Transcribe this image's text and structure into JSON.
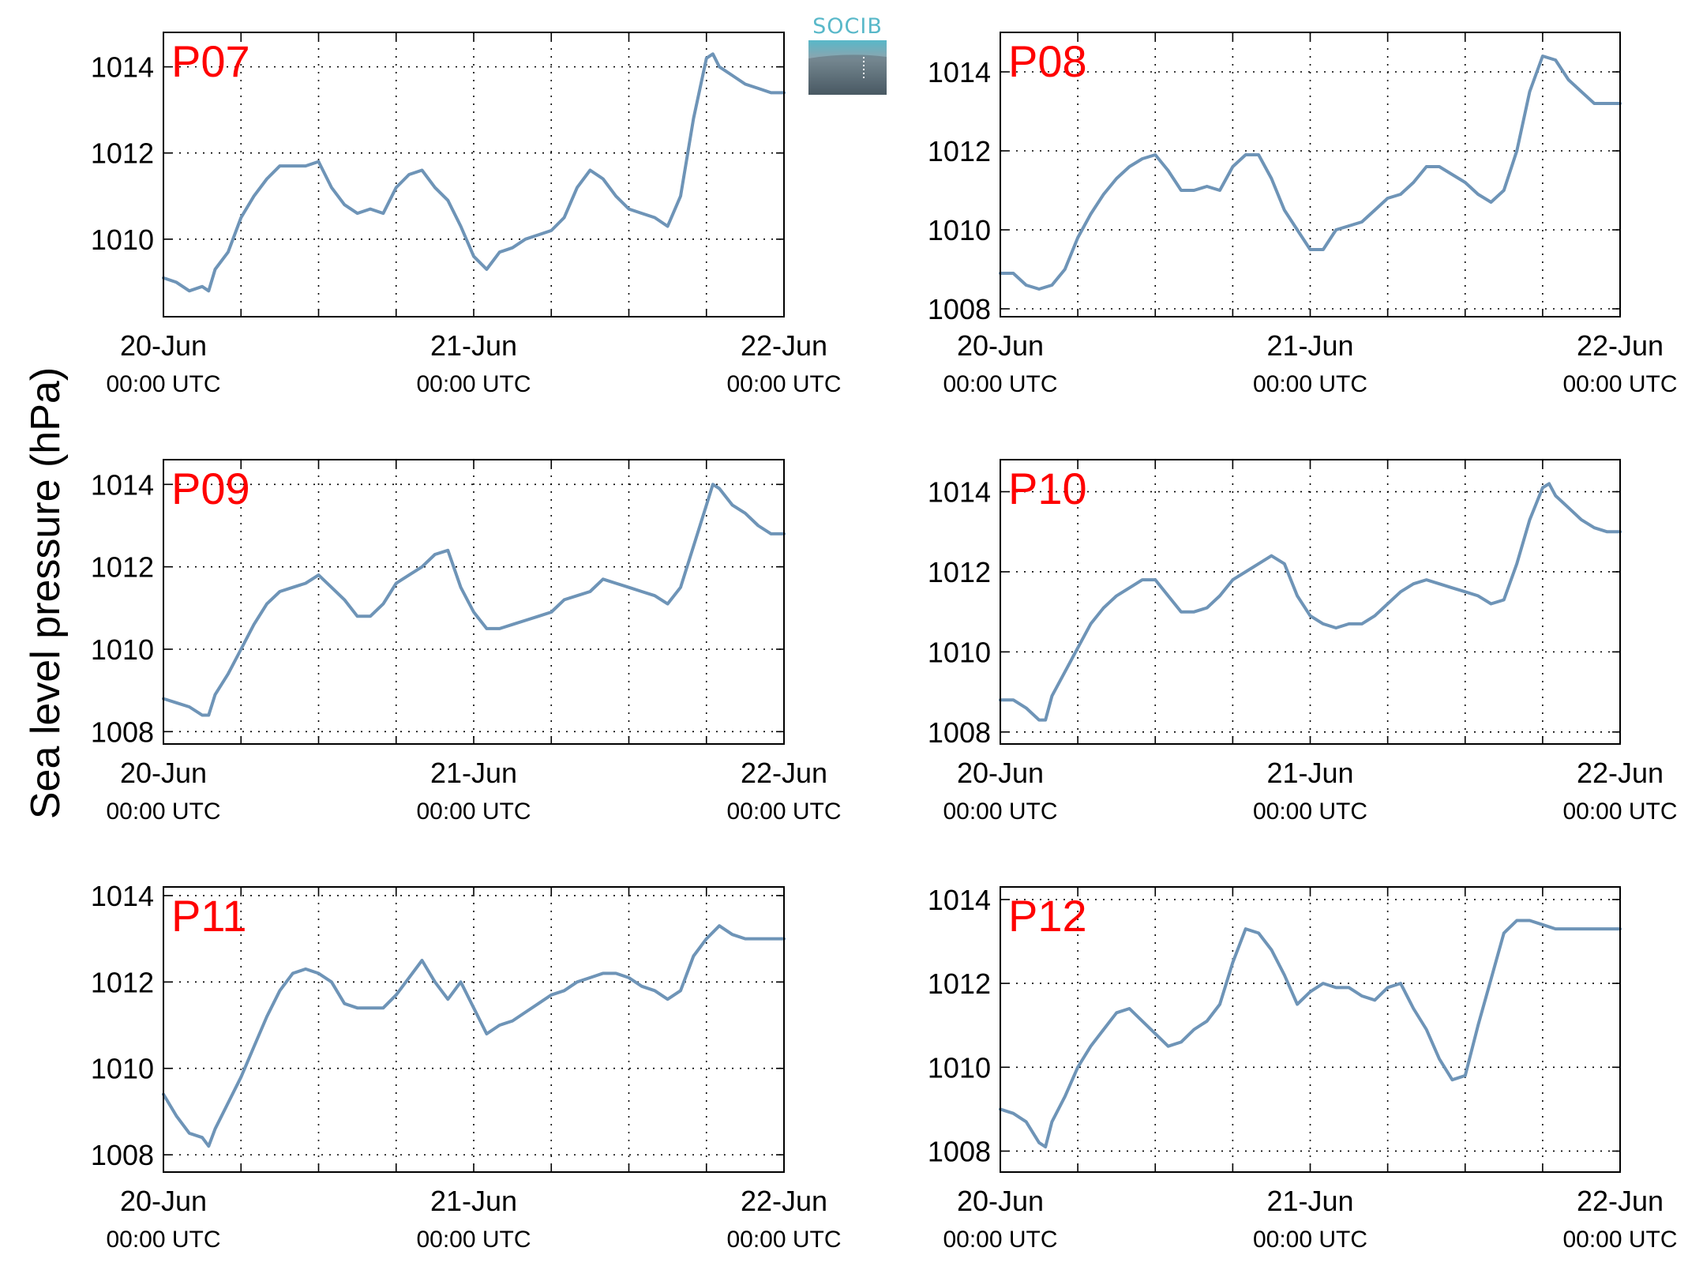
{
  "figure": {
    "ylabel": "Sea level pressure (hPa)",
    "logo_text": "SOCIB"
  },
  "colors": {
    "line": "#6e94b7",
    "panel_label": "#ff0000",
    "axes": "#000000",
    "grid": "#000000",
    "logo_accent": "#58b8c9",
    "logo_dark": "#2e3e48"
  },
  "chart_data": [
    {
      "type": "line",
      "title": "P07",
      "ylim": [
        1008.2,
        1014.8
      ],
      "yticks": [
        1010,
        1012,
        1014
      ],
      "ytick_labels": [
        "1010",
        "1012",
        "1014"
      ],
      "x_tick_labels": [
        [
          "20-Jun",
          "00:00 UTC"
        ],
        [
          "21-Jun",
          "00:00 UTC"
        ],
        [
          "22-Jun",
          "00:00 UTC"
        ]
      ],
      "grid": true,
      "xlabel": "",
      "xlim_hours": [
        0,
        48
      ],
      "series": [
        {
          "x": [
            0,
            1,
            2,
            3,
            3.5,
            4,
            5,
            6,
            7,
            8,
            9,
            10,
            11,
            12,
            13,
            14,
            15,
            16,
            17,
            18,
            19,
            20,
            21,
            22,
            23,
            24,
            25,
            26,
            27,
            28,
            29,
            30,
            31,
            32,
            33,
            34,
            35,
            36,
            37,
            38,
            39,
            40,
            41,
            42,
            42.5,
            43,
            44,
            45,
            46,
            47,
            48
          ],
          "values": [
            1009.1,
            1009.0,
            1008.8,
            1008.9,
            1008.8,
            1009.3,
            1009.7,
            1010.5,
            1011.0,
            1011.4,
            1011.7,
            1011.7,
            1011.7,
            1011.8,
            1011.2,
            1010.8,
            1010.6,
            1010.7,
            1010.6,
            1011.2,
            1011.5,
            1011.6,
            1011.2,
            1010.9,
            1010.3,
            1009.6,
            1009.3,
            1009.7,
            1009.8,
            1010.0,
            1010.1,
            1010.2,
            1010.5,
            1011.2,
            1011.6,
            1011.4,
            1011.0,
            1010.7,
            1010.6,
            1010.5,
            1010.3,
            1011.0,
            1012.8,
            1014.2,
            1014.3,
            1014.0,
            1013.8,
            1013.6,
            1013.5,
            1013.4,
            1013.4
          ]
        }
      ]
    },
    {
      "type": "line",
      "title": "P08",
      "ylim": [
        1007.8,
        1015.0
      ],
      "yticks": [
        1008,
        1010,
        1012,
        1014
      ],
      "ytick_labels": [
        "1008",
        "1010",
        "1012",
        "1014"
      ],
      "x_tick_labels": [
        [
          "20-Jun",
          "00:00 UTC"
        ],
        [
          "21-Jun",
          "00:00 UTC"
        ],
        [
          "22-Jun",
          "00:00 UTC"
        ]
      ],
      "grid": true,
      "xlabel": "",
      "xlim_hours": [
        0,
        48
      ],
      "series": [
        {
          "x": [
            0,
            1,
            2,
            3,
            4,
            5,
            6,
            7,
            8,
            9,
            10,
            11,
            12,
            13,
            14,
            15,
            16,
            17,
            18,
            19,
            20,
            21,
            22,
            23,
            24,
            25,
            26,
            27,
            28,
            29,
            30,
            31,
            32,
            33,
            34,
            35,
            36,
            37,
            38,
            39,
            40,
            41,
            42,
            43,
            44,
            45,
            46,
            47,
            48
          ],
          "values": [
            1008.9,
            1008.9,
            1008.6,
            1008.5,
            1008.6,
            1009.0,
            1009.8,
            1010.4,
            1010.9,
            1011.3,
            1011.6,
            1011.8,
            1011.9,
            1011.5,
            1011.0,
            1011.0,
            1011.1,
            1011.0,
            1011.6,
            1011.9,
            1011.9,
            1011.3,
            1010.5,
            1010.0,
            1009.5,
            1009.5,
            1010.0,
            1010.1,
            1010.2,
            1010.5,
            1010.8,
            1010.9,
            1011.2,
            1011.6,
            1011.6,
            1011.4,
            1011.2,
            1010.9,
            1010.7,
            1011.0,
            1012.0,
            1013.5,
            1014.4,
            1014.3,
            1013.8,
            1013.5,
            1013.2,
            1013.2,
            1013.2
          ]
        }
      ]
    },
    {
      "type": "line",
      "title": "P09",
      "ylim": [
        1007.7,
        1014.6
      ],
      "yticks": [
        1008,
        1010,
        1012,
        1014
      ],
      "ytick_labels": [
        "1008",
        "1010",
        "1012",
        "1014"
      ],
      "x_tick_labels": [
        [
          "20-Jun",
          "00:00 UTC"
        ],
        [
          "21-Jun",
          "00:00 UTC"
        ],
        [
          "22-Jun",
          "00:00 UTC"
        ]
      ],
      "grid": true,
      "xlabel": "",
      "xlim_hours": [
        0,
        48
      ],
      "series": [
        {
          "x": [
            0,
            1,
            2,
            3,
            3.5,
            4,
            5,
            6,
            7,
            8,
            9,
            10,
            11,
            12,
            13,
            14,
            15,
            16,
            17,
            18,
            19,
            20,
            21,
            22,
            23,
            24,
            25,
            26,
            27,
            28,
            29,
            30,
            31,
            32,
            33,
            34,
            35,
            36,
            37,
            38,
            39,
            40,
            41,
            42,
            42.5,
            43,
            44,
            45,
            46,
            47,
            48
          ],
          "values": [
            1008.8,
            1008.7,
            1008.6,
            1008.4,
            1008.4,
            1008.9,
            1009.4,
            1010.0,
            1010.6,
            1011.1,
            1011.4,
            1011.5,
            1011.6,
            1011.8,
            1011.5,
            1011.2,
            1010.8,
            1010.8,
            1011.1,
            1011.6,
            1011.8,
            1012.0,
            1012.3,
            1012.4,
            1011.5,
            1010.9,
            1010.5,
            1010.5,
            1010.6,
            1010.7,
            1010.8,
            1010.9,
            1011.2,
            1011.3,
            1011.4,
            1011.7,
            1011.6,
            1011.5,
            1011.4,
            1011.3,
            1011.1,
            1011.5,
            1012.5,
            1013.5,
            1014.0,
            1013.9,
            1013.5,
            1013.3,
            1013.0,
            1012.8,
            1012.8
          ]
        }
      ]
    },
    {
      "type": "line",
      "title": "P10",
      "ylim": [
        1007.7,
        1014.8
      ],
      "yticks": [
        1008,
        1010,
        1012,
        1014
      ],
      "ytick_labels": [
        "1008",
        "1010",
        "1012",
        "1014"
      ],
      "x_tick_labels": [
        [
          "20-Jun",
          "00:00 UTC"
        ],
        [
          "21-Jun",
          "00:00 UTC"
        ],
        [
          "22-Jun",
          "00:00 UTC"
        ]
      ],
      "grid": true,
      "xlabel": "",
      "xlim_hours": [
        0,
        48
      ],
      "series": [
        {
          "x": [
            0,
            1,
            2,
            3,
            3.5,
            4,
            5,
            6,
            7,
            8,
            9,
            10,
            11,
            12,
            13,
            14,
            15,
            16,
            17,
            18,
            19,
            20,
            21,
            22,
            23,
            24,
            25,
            26,
            27,
            28,
            29,
            30,
            31,
            32,
            33,
            34,
            35,
            36,
            37,
            38,
            39,
            40,
            41,
            42,
            42.5,
            43,
            44,
            45,
            46,
            47,
            48
          ],
          "values": [
            1008.8,
            1008.8,
            1008.6,
            1008.3,
            1008.3,
            1008.9,
            1009.5,
            1010.1,
            1010.7,
            1011.1,
            1011.4,
            1011.6,
            1011.8,
            1011.8,
            1011.4,
            1011.0,
            1011.0,
            1011.1,
            1011.4,
            1011.8,
            1012.0,
            1012.2,
            1012.4,
            1012.2,
            1011.4,
            1010.9,
            1010.7,
            1010.6,
            1010.7,
            1010.7,
            1010.9,
            1011.2,
            1011.5,
            1011.7,
            1011.8,
            1011.7,
            1011.6,
            1011.5,
            1011.4,
            1011.2,
            1011.3,
            1012.2,
            1013.3,
            1014.1,
            1014.2,
            1013.9,
            1013.6,
            1013.3,
            1013.1,
            1013.0,
            1013.0
          ]
        }
      ]
    },
    {
      "type": "line",
      "title": "P11",
      "ylim": [
        1007.6,
        1014.2
      ],
      "yticks": [
        1008,
        1010,
        1012,
        1014
      ],
      "ytick_labels": [
        "1008",
        "1010",
        "1012",
        "1014"
      ],
      "x_tick_labels": [
        [
          "20-Jun",
          "00:00 UTC"
        ],
        [
          "21-Jun",
          "00:00 UTC"
        ],
        [
          "22-Jun",
          "00:00 UTC"
        ]
      ],
      "grid": true,
      "xlabel": "",
      "xlim_hours": [
        0,
        48
      ],
      "series": [
        {
          "x": [
            0,
            1,
            2,
            3,
            3.5,
            4,
            5,
            6,
            7,
            8,
            9,
            10,
            11,
            12,
            13,
            14,
            15,
            16,
            17,
            18,
            19,
            20,
            21,
            22,
            23,
            24,
            25,
            26,
            27,
            28,
            29,
            30,
            31,
            32,
            33,
            34,
            35,
            36,
            37,
            38,
            39,
            40,
            41,
            42,
            43,
            44,
            45,
            46,
            47,
            48
          ],
          "values": [
            1009.4,
            1008.9,
            1008.5,
            1008.4,
            1008.2,
            1008.6,
            1009.2,
            1009.8,
            1010.5,
            1011.2,
            1011.8,
            1012.2,
            1012.3,
            1012.2,
            1012.0,
            1011.5,
            1011.4,
            1011.4,
            1011.4,
            1011.7,
            1012.1,
            1012.5,
            1012.0,
            1011.6,
            1012.0,
            1011.4,
            1010.8,
            1011.0,
            1011.1,
            1011.3,
            1011.5,
            1011.7,
            1011.8,
            1012.0,
            1012.1,
            1012.2,
            1012.2,
            1012.1,
            1011.9,
            1011.8,
            1011.6,
            1011.8,
            1012.6,
            1013.0,
            1013.3,
            1013.1,
            1013.0,
            1013.0,
            1013.0,
            1013.0
          ]
        }
      ]
    },
    {
      "type": "line",
      "title": "P12",
      "ylim": [
        1007.5,
        1014.3
      ],
      "yticks": [
        1008,
        1010,
        1012,
        1014
      ],
      "ytick_labels": [
        "1008",
        "1010",
        "1012",
        "1014"
      ],
      "x_tick_labels": [
        [
          "20-Jun",
          "00:00 UTC"
        ],
        [
          "21-Jun",
          "00:00 UTC"
        ],
        [
          "22-Jun",
          "00:00 UTC"
        ]
      ],
      "grid": true,
      "xlabel": "",
      "xlim_hours": [
        0,
        48
      ],
      "series": [
        {
          "x": [
            0,
            1,
            2,
            3,
            3.5,
            4,
            5,
            6,
            7,
            8,
            9,
            10,
            11,
            12,
            13,
            14,
            15,
            16,
            17,
            18,
            19,
            20,
            21,
            22,
            23,
            24,
            25,
            26,
            27,
            28,
            29,
            30,
            31,
            32,
            33,
            34,
            35,
            36,
            37,
            38,
            39,
            40,
            41,
            42,
            43,
            44,
            45,
            46,
            47,
            48
          ],
          "values": [
            1009.0,
            1008.9,
            1008.7,
            1008.2,
            1008.1,
            1008.7,
            1009.3,
            1010.0,
            1010.5,
            1010.9,
            1011.3,
            1011.4,
            1011.1,
            1010.8,
            1010.5,
            1010.6,
            1010.9,
            1011.1,
            1011.5,
            1012.5,
            1013.3,
            1013.2,
            1012.8,
            1012.2,
            1011.5,
            1011.8,
            1012.0,
            1011.9,
            1011.9,
            1011.7,
            1011.6,
            1011.9,
            1012.0,
            1011.4,
            1010.9,
            1010.2,
            1009.7,
            1009.8,
            1011.0,
            1012.1,
            1013.2,
            1013.5,
            1013.5,
            1013.4,
            1013.3,
            1013.3,
            1013.3,
            1013.3,
            1013.3,
            1013.3
          ]
        }
      ]
    }
  ]
}
